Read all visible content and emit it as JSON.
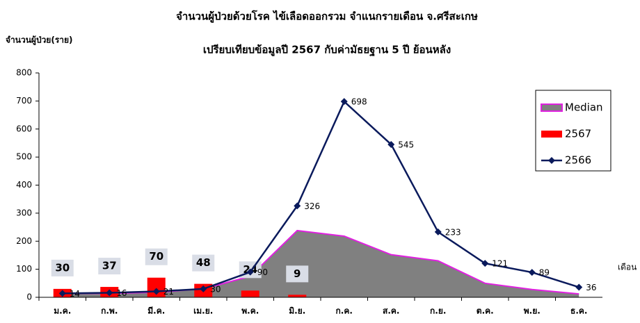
{
  "chart_data": {
    "type": "combo",
    "title": "จำนวนผู้ป่วยด้วยโรค ไข้เลือดออกรวม จำแนกรายเดือน จ.ศรีสะเกษ",
    "subtitle": "เปรียบเทียบข้อมูลปี 2567 กับค่ามัธยฐาน 5 ปี ย้อนหลัง",
    "y_label": "จำนวนผู้ป่วย(ราย)",
    "x_label": "เดือน",
    "categories": [
      "ม.ค.",
      "ก.พ.",
      "มี.ค.",
      "เม.ย.",
      "พ.ค.",
      "มิ.ย.",
      "ก.ค.",
      "ส.ค.",
      "ก.ย.",
      "ต.ค.",
      "พ.ย.",
      "ธ.ค."
    ],
    "series": [
      {
        "name": "Median",
        "kind": "area",
        "color": "#808080",
        "edge_color": "#e020e0",
        "values": [
          14,
          14,
          18,
          30,
          75,
          238,
          218,
          152,
          130,
          50,
          28,
          12
        ]
      },
      {
        "name": "2567",
        "kind": "bar",
        "color": "#ff0000",
        "values": [
          30,
          37,
          70,
          48,
          24,
          9,
          null,
          null,
          null,
          null,
          null,
          null
        ]
      },
      {
        "name": "2566",
        "kind": "line",
        "color": "#0a1a5c",
        "values": [
          14,
          16,
          21,
          30,
          90,
          326,
          698,
          545,
          233,
          121,
          89,
          36
        ]
      }
    ],
    "ylim": [
      0,
      800
    ],
    "yticks": [
      0,
      100,
      200,
      300,
      400,
      500,
      600,
      700,
      800
    ],
    "legend": "right"
  }
}
